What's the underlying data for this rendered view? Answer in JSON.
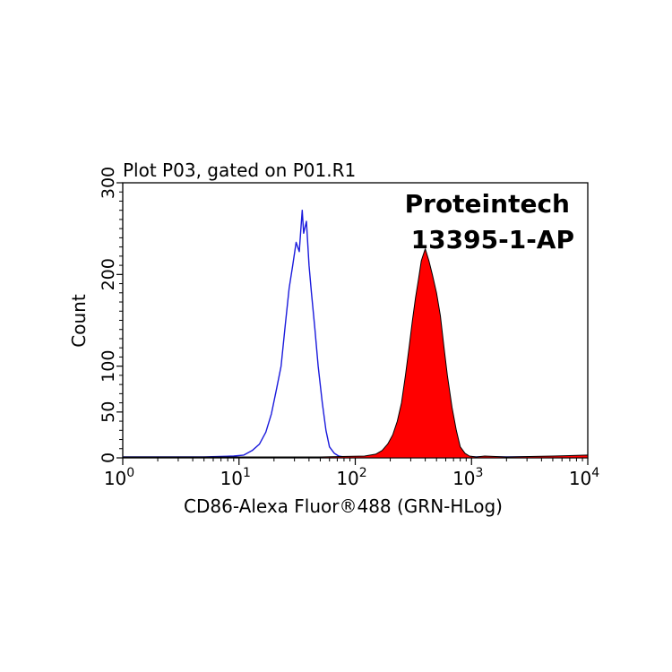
{
  "chart_data": {
    "type": "area",
    "title": "Plot P03, gated on P01.R1",
    "xlabel": "CD86-Alexa Fluor®488 (GRN-HLog)",
    "ylabel": "Count",
    "x_scale": "log",
    "xlim": [
      1,
      10000
    ],
    "ylim": [
      0,
      300
    ],
    "x_ticks": [
      {
        "base": "10",
        "exp": "0",
        "value": 1
      },
      {
        "base": "10",
        "exp": "1",
        "value": 10
      },
      {
        "base": "10",
        "exp": "2",
        "value": 100
      },
      {
        "base": "10",
        "exp": "3",
        "value": 1000
      },
      {
        "base": "10",
        "exp": "4",
        "value": 10000
      }
    ],
    "y_ticks": [
      "0",
      "50",
      "100",
      "200",
      "300"
    ],
    "y_tick_values": [
      0,
      50,
      100,
      200,
      300
    ],
    "annotations": [
      "Proteintech",
      "13395-1-AP"
    ],
    "grid": false,
    "series": [
      {
        "color": "#1a1adc",
        "fill": "none",
        "x": [
          1,
          5,
          9,
          11,
          13,
          15,
          17,
          19,
          21,
          23,
          25,
          27,
          29,
          31,
          33,
          35,
          36,
          38,
          40,
          42,
          45,
          48,
          52,
          56,
          60,
          66,
          72,
          80,
          90,
          120,
          200,
          500,
          1000,
          3000,
          10000
        ],
        "y": [
          1,
          1,
          2,
          3,
          8,
          15,
          28,
          48,
          75,
          100,
          145,
          185,
          210,
          235,
          225,
          270,
          245,
          258,
          210,
          180,
          140,
          100,
          60,
          30,
          12,
          5,
          2,
          1,
          1,
          1,
          1,
          1,
          1,
          1,
          1
        ]
      },
      {
        "color": "#ff0000",
        "fill": "#ff0000",
        "x": [
          1,
          50,
          120,
          150,
          170,
          190,
          210,
          230,
          250,
          270,
          290,
          310,
          330,
          350,
          370,
          400,
          430,
          460,
          500,
          540,
          580,
          620,
          680,
          740,
          800,
          880,
          960,
          1100,
          1300,
          2000,
          5000,
          10000
        ],
        "y": [
          1,
          1,
          2,
          4,
          8,
          15,
          25,
          40,
          60,
          90,
          120,
          150,
          175,
          195,
          215,
          228,
          215,
          200,
          180,
          155,
          120,
          90,
          55,
          30,
          12,
          5,
          2,
          1,
          2,
          1,
          2,
          3
        ]
      }
    ]
  }
}
